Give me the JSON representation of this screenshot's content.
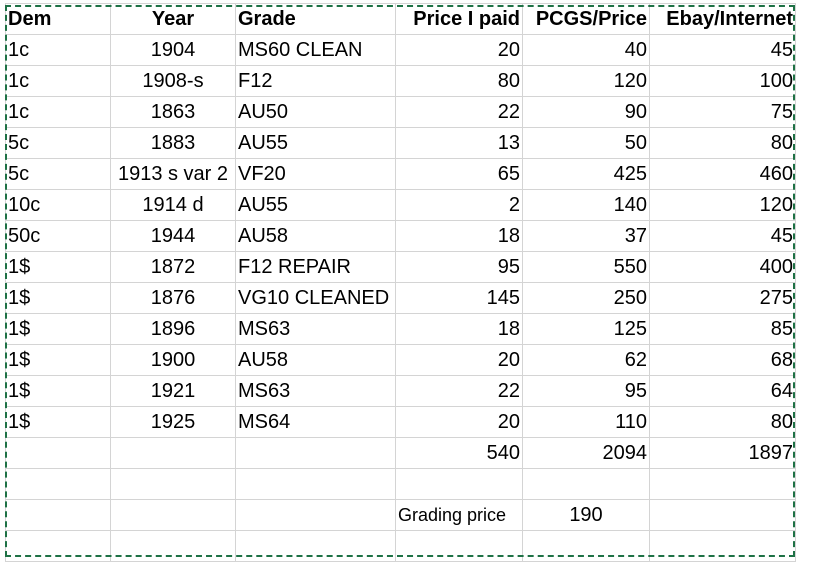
{
  "headers": [
    "Dem",
    "Year",
    "Grade",
    "Price I paid",
    "PCGS/Price",
    "Ebay/Internet"
  ],
  "rows": [
    [
      "1c",
      "1904",
      "MS60 CLEAN",
      "20",
      "40",
      "45"
    ],
    [
      "1c",
      "1908-s",
      "F12",
      "80",
      "120",
      "100"
    ],
    [
      "1c",
      "1863",
      "AU50",
      "22",
      "90",
      "75"
    ],
    [
      "5c",
      "1883",
      "AU55",
      "13",
      "50",
      "80"
    ],
    [
      "5c",
      "1913 s var 2",
      "VF20",
      "65",
      "425",
      "460"
    ],
    [
      "10c",
      "1914 d",
      "AU55",
      "2",
      "140",
      "120"
    ],
    [
      "50c",
      "1944",
      "AU58",
      "18",
      "37",
      "45"
    ],
    [
      "1$",
      "1872",
      "F12 REPAIR",
      "95",
      "550",
      "400"
    ],
    [
      "1$",
      "1876",
      "VG10 CLEANED",
      "145",
      "250",
      "275"
    ],
    [
      "1$",
      "1896",
      "MS63",
      "18",
      "125",
      "85"
    ],
    [
      "1$",
      "1900",
      "AU58",
      "20",
      "62",
      "68"
    ],
    [
      "1$",
      "1921",
      "MS63",
      "22",
      "95",
      "64"
    ],
    [
      "1$",
      "1925",
      "MS64",
      "20",
      "110",
      "80"
    ]
  ],
  "totals": {
    "paid": "540",
    "pcgs": "2094",
    "ebay": "1897"
  },
  "grading": {
    "label": "Grading price",
    "value": "190"
  },
  "colors": {
    "grid": "#d4d4d4",
    "selection": "#1e7145"
  }
}
